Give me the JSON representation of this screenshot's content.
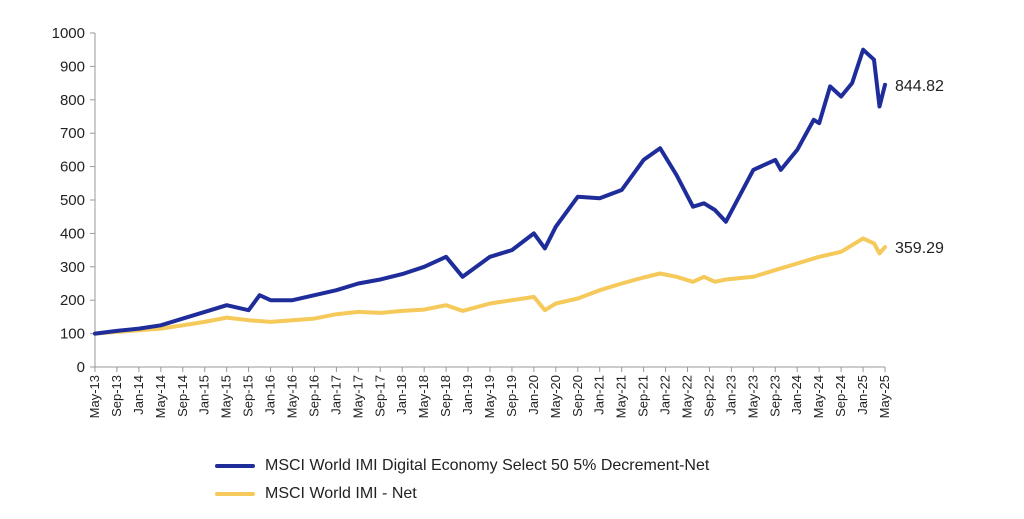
{
  "chart_data": {
    "type": "line",
    "y_ticks": [
      0,
      100,
      200,
      300,
      400,
      500,
      600,
      700,
      800,
      900,
      1000
    ],
    "ylim": [
      0,
      1000
    ],
    "x_ticks": [
      "May-13",
      "Sep-13",
      "Jan-14",
      "May-14",
      "Sep-14",
      "Jan-15",
      "May-15",
      "Sep-15",
      "Jan-16",
      "May-16",
      "Sep-16",
      "Jan-17",
      "May-17",
      "Sep-17",
      "Jan-18",
      "May-18",
      "Sep-18",
      "Jan-19",
      "May-19",
      "Sep-19",
      "Jan-20",
      "May-20",
      "Sep-20",
      "Jan-21",
      "May-21",
      "Sep-21",
      "Jan-22",
      "May-22",
      "Sep-22",
      "Jan-23",
      "May-23",
      "Sep-23",
      "Jan-24",
      "May-24",
      "Sep-24",
      "Jan-25",
      "May-25"
    ],
    "grid": false,
    "legend_position": "bottom",
    "series": [
      {
        "name": "MSCI World IMI Digital Economy Select 50 5% Decrement-Net",
        "color": "#1f2d9b",
        "end_label": "844.82",
        "x": [
          "May-13",
          "Sep-13",
          "Jan-14",
          "May-14",
          "Sep-14",
          "Jan-15",
          "May-15",
          "Sep-15",
          "Nov-15",
          "Jan-16",
          "May-16",
          "Sep-16",
          "Jan-17",
          "May-17",
          "Sep-17",
          "Jan-18",
          "May-18",
          "Sep-18",
          "Dec-18",
          "May-19",
          "Sep-19",
          "Jan-20",
          "Mar-20",
          "May-20",
          "Sep-20",
          "Jan-21",
          "May-21",
          "Sep-21",
          "Dec-21",
          "Mar-22",
          "Jun-22",
          "Aug-22",
          "Oct-22",
          "Dec-22",
          "May-23",
          "Sep-23",
          "Oct-23",
          "Jan-24",
          "Apr-24",
          "May-24",
          "Jul-24",
          "Sep-24",
          "Nov-24",
          "Jan-25",
          "Mar-25",
          "Apr-25",
          "May-25"
        ],
        "y": [
          100,
          108,
          115,
          125,
          145,
          165,
          185,
          170,
          215,
          200,
          200,
          215,
          230,
          250,
          262,
          278,
          300,
          330,
          270,
          330,
          350,
          400,
          355,
          420,
          510,
          505,
          530,
          620,
          655,
          575,
          480,
          490,
          470,
          435,
          590,
          620,
          590,
          650,
          740,
          730,
          840,
          810,
          850,
          950,
          920,
          780,
          845
        ]
      },
      {
        "name": "MSCI World IMI - Net",
        "color": "#f5c95a",
        "end_label": "359.29",
        "x": [
          "May-13",
          "Sep-13",
          "Jan-14",
          "May-14",
          "Sep-14",
          "Jan-15",
          "May-15",
          "Sep-15",
          "Jan-16",
          "May-16",
          "Sep-16",
          "Jan-17",
          "May-17",
          "Sep-17",
          "Jan-18",
          "May-18",
          "Sep-18",
          "Dec-18",
          "May-19",
          "Sep-19",
          "Jan-20",
          "Mar-20",
          "May-20",
          "Sep-20",
          "Jan-21",
          "May-21",
          "Sep-21",
          "Dec-21",
          "Mar-22",
          "Jun-22",
          "Aug-22",
          "Oct-22",
          "Dec-22",
          "May-23",
          "Sep-23",
          "Jan-24",
          "May-24",
          "Sep-24",
          "Jan-25",
          "Mar-25",
          "Apr-25",
          "May-25"
        ],
        "y": [
          100,
          105,
          110,
          115,
          125,
          135,
          148,
          140,
          135,
          140,
          145,
          158,
          165,
          162,
          168,
          172,
          185,
          168,
          190,
          200,
          210,
          170,
          190,
          205,
          230,
          250,
          268,
          280,
          270,
          255,
          270,
          255,
          262,
          270,
          290,
          310,
          330,
          345,
          385,
          370,
          340,
          359
        ]
      }
    ]
  }
}
